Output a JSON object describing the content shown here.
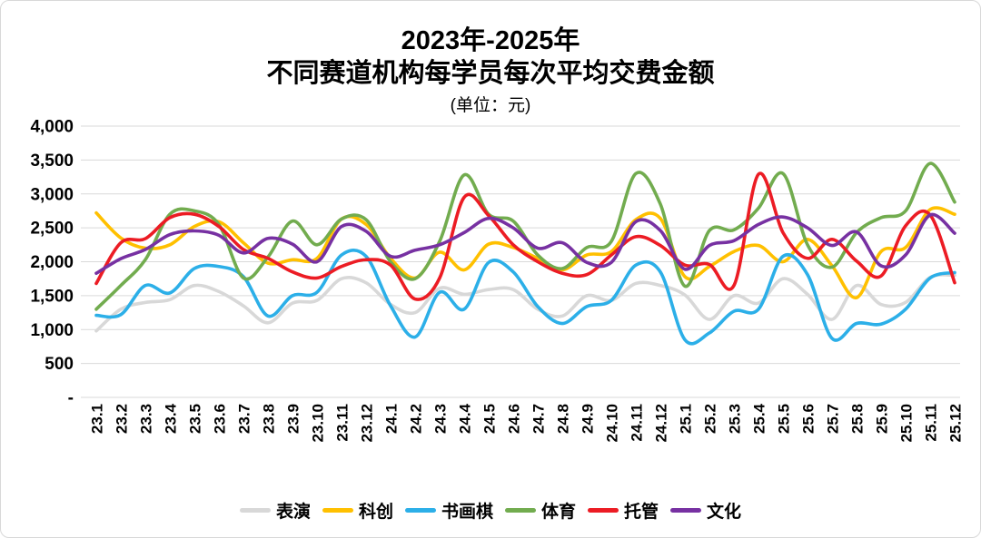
{
  "chart_data": {
    "type": "line",
    "line_style": "smooth",
    "title_line1": "2023年-2025年",
    "title_line2": "不同赛道机构每学员每次平均交费金额",
    "unit_label": "(单位：元)",
    "grid": true,
    "legend_position": "bottom",
    "ylim": [
      0,
      4000
    ],
    "y_ticks": [
      {
        "value": 4000,
        "label": "4,000"
      },
      {
        "value": 3500,
        "label": "3,500"
      },
      {
        "value": 3000,
        "label": "3,000"
      },
      {
        "value": 2500,
        "label": "2,500"
      },
      {
        "value": 2000,
        "label": "2,000"
      },
      {
        "value": 1500,
        "label": "1,500"
      },
      {
        "value": 1000,
        "label": "1,000"
      },
      {
        "value": 500,
        "label": "500"
      },
      {
        "value": 0,
        "label": "-"
      }
    ],
    "categories": [
      "23.1",
      "23.2",
      "23.3",
      "23.4",
      "23.5",
      "23.6",
      "23.7",
      "23.8",
      "23.9",
      "23.10",
      "23.11",
      "23.12",
      "24.1",
      "24.2",
      "24.3",
      "24.4",
      "24.5",
      "24.6",
      "24.7",
      "24.8",
      "24.9",
      "24.10",
      "24.11",
      "24.12",
      "25.1",
      "25.2",
      "25.3",
      "25.4",
      "25.5",
      "25.6",
      "25.7",
      "25.8",
      "25.9",
      "25.10",
      "25.11",
      "25.12"
    ],
    "series": [
      {
        "name": "表演",
        "color": "#D8D8D8",
        "values": [
          980,
          1300,
          1400,
          1440,
          1650,
          1560,
          1350,
          1100,
          1390,
          1430,
          1750,
          1690,
          1370,
          1250,
          1610,
          1520,
          1590,
          1590,
          1300,
          1200,
          1500,
          1430,
          1680,
          1650,
          1510,
          1150,
          1500,
          1390,
          1750,
          1520,
          1150,
          1650,
          1370,
          1400,
          1770,
          1800
        ]
      },
      {
        "name": "科创",
        "color": "#FFC000",
        "values": [
          2720,
          2350,
          2200,
          2250,
          2520,
          2590,
          2280,
          1980,
          2030,
          2050,
          2630,
          2550,
          2050,
          1760,
          2140,
          1880,
          2260,
          2210,
          2050,
          1880,
          2100,
          2150,
          2620,
          2640,
          1780,
          1930,
          2150,
          2240,
          2000,
          2330,
          1940,
          1470,
          2150,
          2210,
          2770,
          2700
        ]
      },
      {
        "name": "书画棋",
        "color": "#2CAFE8",
        "values": [
          1210,
          1220,
          1650,
          1540,
          1900,
          1930,
          1780,
          1200,
          1500,
          1550,
          2100,
          2080,
          1350,
          890,
          1550,
          1300,
          1990,
          1850,
          1340,
          1090,
          1340,
          1430,
          1950,
          1850,
          850,
          950,
          1270,
          1300,
          2080,
          1810,
          870,
          1090,
          1080,
          1300,
          1760,
          1840
        ]
      },
      {
        "name": "体育",
        "color": "#72AC4F",
        "values": [
          1300,
          1650,
          2030,
          2700,
          2750,
          2550,
          1760,
          2070,
          2600,
          2250,
          2630,
          2620,
          2000,
          1750,
          2300,
          3280,
          2700,
          2600,
          2100,
          1900,
          2210,
          2300,
          3300,
          2850,
          1640,
          2460,
          2470,
          2790,
          3300,
          2250,
          1920,
          2430,
          2650,
          2750,
          3450,
          2880
        ]
      },
      {
        "name": "托管",
        "color": "#EC1C24",
        "values": [
          1680,
          2280,
          2340,
          2650,
          2700,
          2520,
          2180,
          2050,
          1850,
          1760,
          1930,
          2030,
          1950,
          1450,
          1760,
          2950,
          2680,
          2250,
          2000,
          1830,
          1810,
          2100,
          2370,
          2240,
          1950,
          1960,
          1650,
          3290,
          2430,
          2050,
          2330,
          2010,
          1790,
          2530,
          2690,
          1690
        ]
      },
      {
        "name": "文化",
        "color": "#7731A2",
        "values": [
          1830,
          2045,
          2180,
          2400,
          2455,
          2390,
          2130,
          2345,
          2260,
          2000,
          2520,
          2450,
          2080,
          2170,
          2250,
          2430,
          2640,
          2500,
          2200,
          2280,
          1990,
          1990,
          2590,
          2460,
          1890,
          2240,
          2310,
          2550,
          2660,
          2500,
          2240,
          2440,
          1940,
          2100,
          2690,
          2420
        ]
      }
    ]
  }
}
